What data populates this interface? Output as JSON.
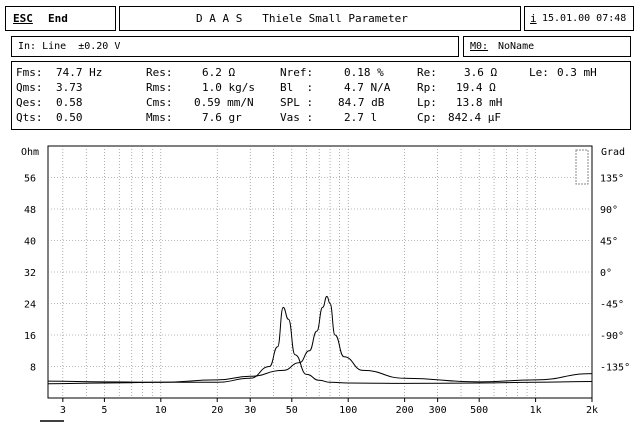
{
  "topbar": {
    "esc_key": "ESC",
    "esc_label": "End",
    "title": "D A A S   Thiele Small Parameter",
    "info_key": "i",
    "datetime": "15.01.00 07:48"
  },
  "input_bar": {
    "input_text": "In: Line  ±0.20 V",
    "mode_key": "M0:",
    "mode_value": "NoName"
  },
  "params": {
    "col1": [
      {
        "name": "Fms:",
        "value": "74.7 Hz"
      },
      {
        "name": "Qms:",
        "value": "3.73"
      },
      {
        "name": "Qes:",
        "value": "0.58"
      },
      {
        "name": "Qts:",
        "value": "0.50"
      }
    ],
    "col2": [
      {
        "name": "Res:",
        "value": "6.2 Ω"
      },
      {
        "name": "Rms:",
        "value": "1.0 kg/s"
      },
      {
        "name": "Cms:",
        "value": "0.59 mm/N"
      },
      {
        "name": "Mms:",
        "value": "7.6 gr"
      }
    ],
    "col3": [
      {
        "name": "Nref:",
        "value": "0.18 %"
      },
      {
        "name": "Bl  :",
        "value": "4.7 N/A"
      },
      {
        "name": "SPL :",
        "value": "84.7 dB"
      },
      {
        "name": "Vas :",
        "value": "2.7 l"
      }
    ],
    "col4": [
      {
        "name": "Re:",
        "value": "3.6 Ω"
      },
      {
        "name": "Rp:",
        "value": "19.4 Ω"
      },
      {
        "name": "Lp:",
        "value": "13.8 mH"
      },
      {
        "name": "Cp:",
        "value": "842.4 µF"
      }
    ],
    "col5": [
      {
        "name": "Le:",
        "value": "0.3 mH"
      }
    ]
  },
  "chart_data": {
    "type": "line",
    "y_left_label": "Ohm",
    "y_right_label": "Grad",
    "y_left_ticks": [
      "56",
      "48",
      "40",
      "32",
      "24",
      "16",
      "8"
    ],
    "y_left_tick_values": [
      56,
      48,
      40,
      32,
      24,
      16,
      8
    ],
    "y_right_ticks": [
      "135°",
      "90°",
      "45°",
      "0°",
      "-45°",
      "-90°",
      "-135°"
    ],
    "y_left_range": [
      0,
      64
    ],
    "x_scale": "log",
    "x_range": [
      2.5,
      2000
    ],
    "x_ticks": [
      "3",
      "5",
      "10",
      "20",
      "30",
      "50",
      "100",
      "200",
      "300",
      "500",
      "1k",
      "2k"
    ],
    "x_tick_values": [
      3,
      5,
      10,
      20,
      30,
      50,
      100,
      200,
      300,
      500,
      1000,
      2000
    ],
    "grid": true,
    "series": [
      {
        "x": [
          2.5,
          5,
          10,
          20,
          30,
          38,
          42,
          45,
          48,
          52,
          60,
          70,
          80,
          100,
          200,
          500,
          1000,
          2000
        ],
        "y": [
          4.3,
          4.1,
          4.0,
          4.0,
          5.0,
          8.0,
          13.0,
          23.0,
          20.0,
          11.0,
          6.0,
          4.5,
          4.0,
          3.8,
          3.7,
          3.8,
          4.0,
          4.2
        ]
      },
      {
        "x": [
          2.5,
          5,
          10,
          20,
          30,
          45,
          55,
          62,
          68,
          73,
          77,
          80,
          85,
          95,
          120,
          200,
          500,
          1000,
          2000
        ],
        "y": [
          3.6,
          3.8,
          4.0,
          4.6,
          5.5,
          7.0,
          9.0,
          12.0,
          17.0,
          23.0,
          25.8,
          24.0,
          16.0,
          10.5,
          7.0,
          5.0,
          4.1,
          4.6,
          6.2
        ]
      }
    ]
  }
}
